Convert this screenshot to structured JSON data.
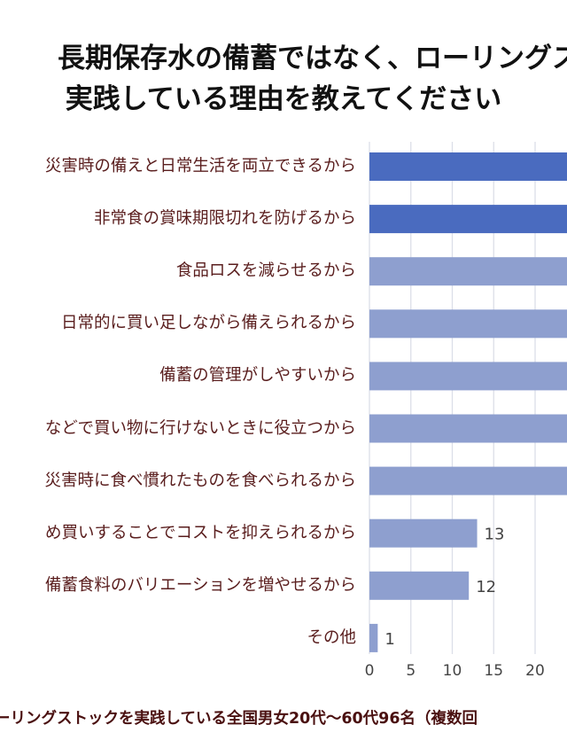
{
  "title_lines": [
    "長期保存水の備蓄ではなく、ローリングス",
    "実践している理由を教えてください"
  ],
  "footer": "ーリングストックを実践している全国男女20代〜60代96名（複数回",
  "colors": {
    "bar_highlight": "#4a6bbf",
    "bar_normal": "#8e9fcf",
    "grid": "#dcdfe8",
    "label": "#5a1e1e"
  },
  "chart_data": {
    "type": "bar",
    "orientation": "horizontal",
    "categories": [
      "災害時の備えと日常生活を両立できるから",
      "非常食の賞味期限切れを防げるから",
      "食品ロスを減らせるから",
      "日常的に買い足しながら備えられるから",
      "備蓄の管理がしやすいから",
      "などで買い物に行けないときに役立つから",
      "災害時に食べ慣れたものを食べられるから",
      "め買いすることでコストを抑えられるから",
      "備蓄食料のバリエーションを増やせるから",
      "その他"
    ],
    "values": [
      null,
      null,
      null,
      null,
      null,
      null,
      null,
      13,
      12,
      1
    ],
    "value_labels": [
      "",
      "",
      "",
      "",
      "",
      "",
      "",
      "13",
      "12",
      "1"
    ],
    "highlighted": [
      true,
      true,
      false,
      false,
      false,
      false,
      false,
      false,
      false,
      false
    ],
    "x_ticks": [
      "0",
      "5",
      "10",
      "15",
      "20"
    ],
    "xlim": [
      0,
      24
    ],
    "grid": true
  }
}
